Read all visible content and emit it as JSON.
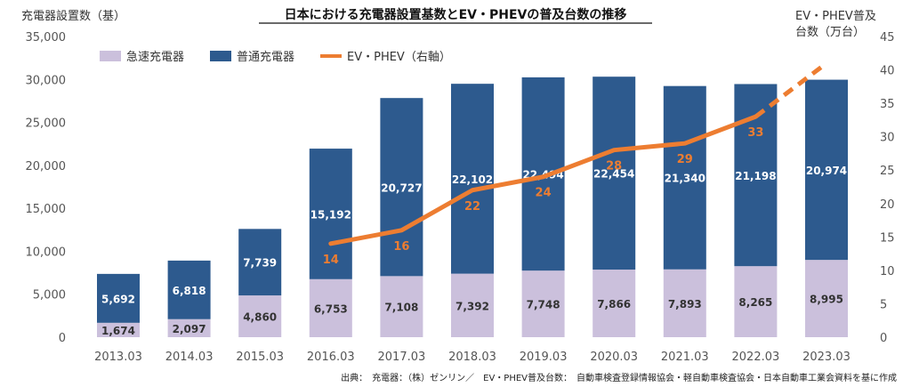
{
  "chart_data": {
    "type": "bar",
    "title": "日本における充電器設置基数とEV・PHEVの普及台数の推移",
    "ylabel_left": "充電器設置数（基）",
    "ylabel_right_line1": "EV・PHEV普及",
    "ylabel_right_line2": "台数（万台）",
    "left_ylim": [
      0,
      35000
    ],
    "left_ticks": [
      "0",
      "5,000",
      "10,000",
      "15,000",
      "20,000",
      "25,000",
      "30,000",
      "35,000"
    ],
    "right_ylim": [
      0,
      45
    ],
    "right_ticks": [
      "0",
      "5",
      "10",
      "15",
      "20",
      "25",
      "30",
      "35",
      "40",
      "45"
    ],
    "categories": [
      "2013.03",
      "2014.03",
      "2015.03",
      "2016.03",
      "2017.03",
      "2018.03",
      "2019.03",
      "2020.03",
      "2021.03",
      "2022.03",
      "2023.03"
    ],
    "stacked": true,
    "grid": false,
    "legend_position": "top-left",
    "series": [
      {
        "name": "急速充電器",
        "color": "#cbc0dc",
        "values": [
          1674,
          2097,
          4860,
          6753,
          7108,
          7392,
          7748,
          7866,
          7893,
          8265,
          8995
        ],
        "labels": [
          "1,674",
          "2,097",
          "4,860",
          "6,753",
          "7,108",
          "7,392",
          "7,748",
          "7,866",
          "7,893",
          "8,265",
          "8,995"
        ]
      },
      {
        "name": "普通充電器",
        "color": "#2d5a8e",
        "values": [
          5692,
          6818,
          7739,
          15192,
          20727,
          22102,
          22494,
          22454,
          21340,
          21198,
          20974
        ],
        "labels": [
          "5,692",
          "6,818",
          "7,739",
          "15,192",
          "20,727",
          "22,102",
          "22,494",
          "22,454",
          "21,340",
          "21,198",
          "20,974"
        ]
      }
    ],
    "line_series": {
      "name": "EV・PHEV（右軸）",
      "color": "#ed7d31",
      "axis": "right",
      "values": [
        null,
        null,
        null,
        14,
        16,
        22,
        24,
        28,
        29,
        33,
        41
      ],
      "labels": [
        "",
        "",
        "",
        "14",
        "16",
        "22",
        "24",
        "28",
        "29",
        "33",
        ""
      ],
      "dashed_from_index": 9
    },
    "source": "出典：　充電器：（株）ゼンリン／　EV・PHEV普及台数：　自動車検査登録情報協会・軽自動車検査協会・日本自動車工業会資料を基に作成"
  }
}
